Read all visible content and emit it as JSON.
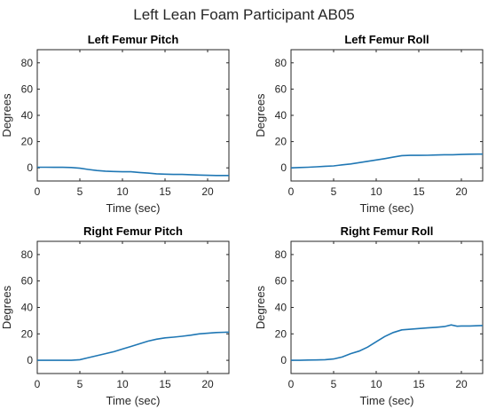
{
  "figure_title": "Left Lean Foam Participant AB05",
  "chart_data": [
    {
      "type": "line",
      "title": "Left Femur Pitch",
      "xlabel": "Time (sec)",
      "ylabel": "Degrees",
      "xlim": [
        0,
        22.5
      ],
      "ylim": [
        -10,
        90
      ],
      "xticks": [
        0,
        5,
        10,
        15,
        20
      ],
      "yticks": [
        0,
        20,
        40,
        60,
        80
      ],
      "grid": false,
      "color": "#1f77b4",
      "series": [
        {
          "x": [
            0,
            1,
            2,
            3,
            4,
            5,
            6,
            7,
            8,
            9,
            10,
            11,
            12,
            13,
            14,
            15,
            16,
            17,
            18,
            19,
            20,
            21,
            22,
            22.5
          ],
          "y": [
            0.5,
            0.5,
            0.4,
            0.4,
            0.3,
            -0.3,
            -1.2,
            -2.0,
            -2.5,
            -2.8,
            -3.0,
            -3.0,
            -3.5,
            -4.0,
            -4.5,
            -4.8,
            -5.0,
            -5.0,
            -5.2,
            -5.5,
            -5.7,
            -5.8,
            -5.8,
            -5.8
          ]
        }
      ]
    },
    {
      "type": "line",
      "title": "Left Femur Roll",
      "xlabel": "Time (sec)",
      "ylabel": "Degrees",
      "xlim": [
        0,
        22.5
      ],
      "ylim": [
        -10,
        90
      ],
      "xticks": [
        0,
        5,
        10,
        15,
        20
      ],
      "yticks": [
        0,
        20,
        40,
        60,
        80
      ],
      "grid": false,
      "color": "#1f77b4",
      "series": [
        {
          "x": [
            0,
            1,
            2,
            3,
            4,
            5,
            6,
            7,
            8,
            9,
            10,
            11,
            12,
            13,
            14,
            15,
            16,
            17,
            18,
            19,
            20,
            21,
            22,
            22.5
          ],
          "y": [
            0.0,
            0.3,
            0.5,
            0.8,
            1.2,
            1.5,
            2.3,
            3.0,
            4.0,
            5.0,
            6.0,
            7.0,
            8.2,
            9.3,
            9.5,
            9.5,
            9.6,
            9.8,
            10.0,
            10.0,
            10.2,
            10.4,
            10.5,
            10.5
          ]
        }
      ]
    },
    {
      "type": "line",
      "title": "Right Femur Pitch",
      "xlabel": "Time (sec)",
      "ylabel": "Degrees",
      "xlim": [
        0,
        22.5
      ],
      "ylim": [
        -10,
        90
      ],
      "xticks": [
        0,
        5,
        10,
        15,
        20
      ],
      "yticks": [
        0,
        20,
        40,
        60,
        80
      ],
      "grid": false,
      "color": "#1f77b4",
      "series": [
        {
          "x": [
            0,
            1,
            2,
            3,
            4,
            5,
            6,
            7,
            8,
            9,
            10,
            11,
            12,
            13,
            14,
            15,
            16,
            17,
            18,
            19,
            20,
            21,
            22,
            22.5
          ],
          "y": [
            0.0,
            0.0,
            0.0,
            0.0,
            0.0,
            0.5,
            2.0,
            3.5,
            5.0,
            6.5,
            8.5,
            10.5,
            12.5,
            14.5,
            16.0,
            17.0,
            17.5,
            18.2,
            19.0,
            20.0,
            20.5,
            21.0,
            21.2,
            21.3
          ]
        }
      ]
    },
    {
      "type": "line",
      "title": "Right Femur Roll",
      "xlabel": "Time (sec)",
      "ylabel": "Degrees",
      "xlim": [
        0,
        22.5
      ],
      "ylim": [
        -10,
        90
      ],
      "xticks": [
        0,
        5,
        10,
        15,
        20
      ],
      "yticks": [
        0,
        20,
        40,
        60,
        80
      ],
      "grid": false,
      "color": "#1f77b4",
      "series": [
        {
          "x": [
            0,
            1,
            2,
            3,
            4,
            5,
            6,
            7,
            8,
            9,
            10,
            11,
            12,
            13,
            14,
            15,
            16,
            17,
            18,
            18.8,
            19.5,
            20,
            21,
            22,
            22.5
          ],
          "y": [
            0.0,
            0.0,
            0.2,
            0.3,
            0.5,
            1.0,
            2.5,
            5.0,
            7.0,
            10.0,
            14.0,
            18.0,
            21.0,
            23.0,
            23.5,
            24.0,
            24.5,
            25.0,
            25.5,
            26.8,
            25.8,
            26.0,
            26.0,
            26.2,
            26.3
          ]
        }
      ]
    }
  ]
}
